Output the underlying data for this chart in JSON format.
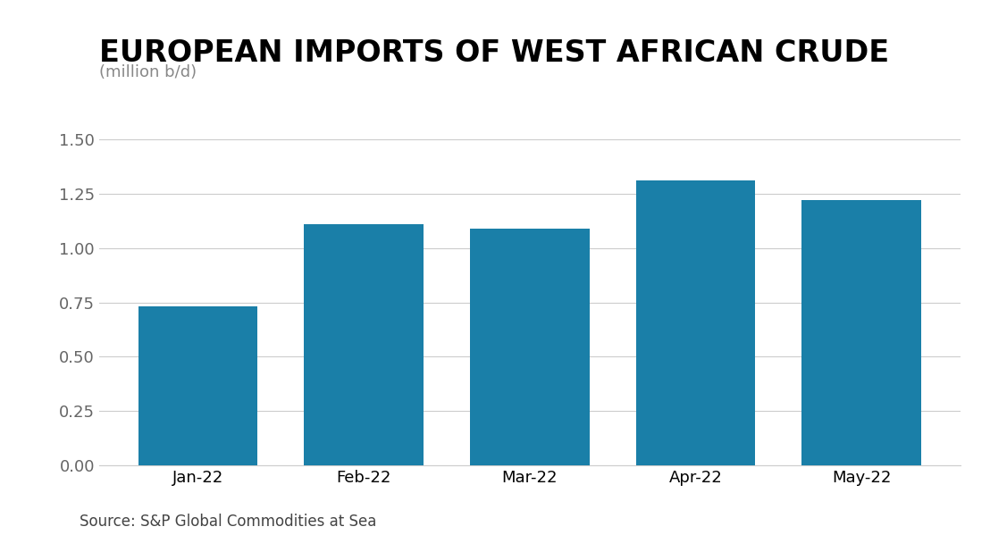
{
  "title": "EUROPEAN IMPORTS OF WEST AFRICAN CRUDE",
  "subtitle": "(million b/d)",
  "source": "Source: S&P Global Commodities at Sea",
  "categories": [
    "Jan-22",
    "Feb-22",
    "Mar-22",
    "Apr-22",
    "May-22"
  ],
  "values": [
    0.73,
    1.11,
    1.09,
    1.31,
    1.22
  ],
  "bar_color": "#1a7fa8",
  "background_color": "#ffffff",
  "ylim": [
    0,
    1.6
  ],
  "yticks": [
    0.0,
    0.25,
    0.5,
    0.75,
    1.0,
    1.25,
    1.5
  ],
  "title_fontsize": 24,
  "subtitle_fontsize": 13,
  "tick_fontsize": 13,
  "source_fontsize": 12,
  "grid_color": "#cccccc",
  "text_color": "#000000",
  "subtitle_color": "#888888",
  "source_color": "#444444",
  "bar_width": 0.72
}
